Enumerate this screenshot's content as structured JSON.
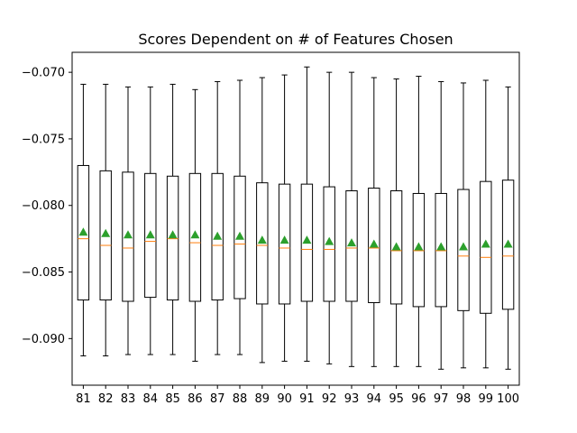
{
  "chart_data": {
    "type": "box",
    "title": "Scores Dependent on # of Features Chosen",
    "xlabel": "",
    "ylabel": "",
    "ylim": [
      -0.0935,
      -0.0685
    ],
    "yticks": [
      "-0.070",
      "-0.075",
      "-0.080",
      "-0.085",
      "-0.090"
    ],
    "ytick_values": [
      -0.07,
      -0.075,
      -0.08,
      -0.085,
      -0.09
    ],
    "grid": false,
    "colors": {
      "box": "#000000",
      "median": "#ff7f0e",
      "mean": "#2ca02c"
    },
    "categories": [
      "81",
      "82",
      "83",
      "84",
      "85",
      "86",
      "87",
      "88",
      "89",
      "90",
      "91",
      "92",
      "93",
      "94",
      "95",
      "96",
      "97",
      "98",
      "99",
      "100"
    ],
    "boxes": [
      {
        "whislo": -0.0913,
        "q1": -0.0871,
        "med": -0.0825,
        "mean": -0.082,
        "q3": -0.077,
        "whishi": -0.0709
      },
      {
        "whislo": -0.0913,
        "q1": -0.0871,
        "med": -0.083,
        "mean": -0.0821,
        "q3": -0.0774,
        "whishi": -0.0709
      },
      {
        "whislo": -0.0912,
        "q1": -0.0872,
        "med": -0.0832,
        "mean": -0.0822,
        "q3": -0.0775,
        "whishi": -0.0711
      },
      {
        "whislo": -0.0912,
        "q1": -0.0869,
        "med": -0.0827,
        "mean": -0.0822,
        "q3": -0.0776,
        "whishi": -0.0711
      },
      {
        "whislo": -0.0912,
        "q1": -0.0871,
        "med": -0.0825,
        "mean": -0.0822,
        "q3": -0.0778,
        "whishi": -0.0709
      },
      {
        "whislo": -0.0917,
        "q1": -0.0872,
        "med": -0.0828,
        "mean": -0.0822,
        "q3": -0.0776,
        "whishi": -0.0713
      },
      {
        "whislo": -0.0912,
        "q1": -0.0871,
        "med": -0.083,
        "mean": -0.0823,
        "q3": -0.0776,
        "whishi": -0.0707
      },
      {
        "whislo": -0.0912,
        "q1": -0.087,
        "med": -0.0829,
        "mean": -0.0823,
        "q3": -0.0778,
        "whishi": -0.0706
      },
      {
        "whislo": -0.0918,
        "q1": -0.0874,
        "med": -0.083,
        "mean": -0.0826,
        "q3": -0.0783,
        "whishi": -0.0704
      },
      {
        "whislo": -0.0917,
        "q1": -0.0874,
        "med": -0.0832,
        "mean": -0.0826,
        "q3": -0.0784,
        "whishi": -0.0702
      },
      {
        "whislo": -0.0917,
        "q1": -0.0872,
        "med": -0.0833,
        "mean": -0.0826,
        "q3": -0.0784,
        "whishi": -0.0696
      },
      {
        "whislo": -0.0919,
        "q1": -0.0872,
        "med": -0.0833,
        "mean": -0.0827,
        "q3": -0.0786,
        "whishi": -0.07
      },
      {
        "whislo": -0.0921,
        "q1": -0.0872,
        "med": -0.0832,
        "mean": -0.0828,
        "q3": -0.0789,
        "whishi": -0.07
      },
      {
        "whislo": -0.0921,
        "q1": -0.0873,
        "med": -0.0832,
        "mean": -0.0829,
        "q3": -0.0787,
        "whishi": -0.0704
      },
      {
        "whislo": -0.0921,
        "q1": -0.0874,
        "med": -0.0834,
        "mean": -0.0831,
        "q3": -0.0789,
        "whishi": -0.0705
      },
      {
        "whislo": -0.0921,
        "q1": -0.0876,
        "med": -0.0834,
        "mean": -0.0831,
        "q3": -0.0791,
        "whishi": -0.0703
      },
      {
        "whislo": -0.0923,
        "q1": -0.0876,
        "med": -0.0834,
        "mean": -0.0831,
        "q3": -0.0791,
        "whishi": -0.0707
      },
      {
        "whislo": -0.0922,
        "q1": -0.0879,
        "med": -0.0838,
        "mean": -0.0831,
        "q3": -0.0788,
        "whishi": -0.0708
      },
      {
        "whislo": -0.0922,
        "q1": -0.0881,
        "med": -0.0839,
        "mean": -0.0829,
        "q3": -0.0782,
        "whishi": -0.0706
      },
      {
        "whislo": -0.0923,
        "q1": -0.0878,
        "med": -0.0838,
        "mean": -0.0829,
        "q3": -0.0781,
        "whishi": -0.0711
      }
    ]
  }
}
